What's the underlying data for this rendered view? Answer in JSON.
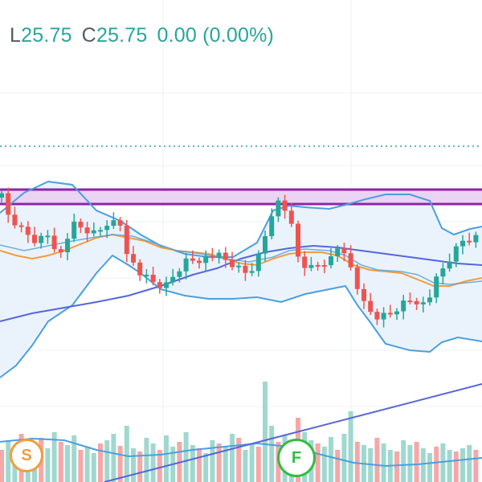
{
  "legend": {
    "low_label": "L",
    "low_value": "25.75",
    "close_label": "C",
    "close_value": "25.75",
    "change": "0.00",
    "change_pct": "(0.00%)"
  },
  "colors": {
    "up": "#26a69a",
    "down": "#ef5350",
    "band": "#4a9fe0",
    "band_fill": "#e8f2fc",
    "fast_ma": "#f39c3c",
    "slow_ma": "#5566dd",
    "zone_border": "#8e24aa",
    "zone_fill": "#ebd4f3",
    "vol_up": "#9fd8cf",
    "vol_down": "#f6a7a7",
    "grid": "#eef0f3"
  },
  "markers": [
    {
      "name": "s-marker",
      "label": "S",
      "color": "#f39c3c"
    },
    {
      "name": "f-marker",
      "label": "F",
      "color": "#2fbd44"
    }
  ]
}
